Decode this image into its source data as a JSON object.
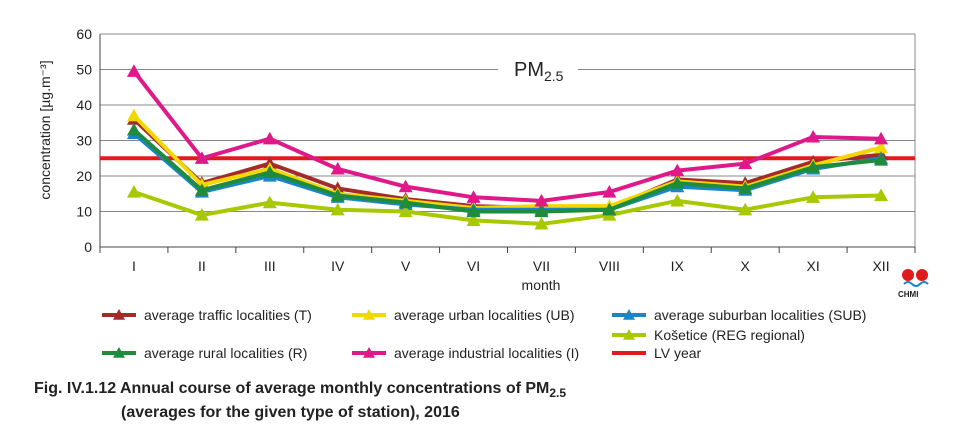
{
  "chart_data": {
    "type": "line",
    "title": "PM",
    "title_sub": "2.5",
    "xlabel": "month",
    "ylabel": "concentration [µg.m⁻³]",
    "ylim": [
      0,
      60
    ],
    "yticks": [
      0,
      10,
      20,
      30,
      40,
      50,
      60
    ],
    "categories": [
      "I",
      "II",
      "III",
      "IV",
      "V",
      "VI",
      "VII",
      "VIII",
      "IX",
      "X",
      "XI",
      "XII"
    ],
    "grid": true,
    "series": [
      {
        "name": "average traffic localities (T)",
        "color": "#a52a2a",
        "values": [
          36,
          18,
          23.5,
          16.5,
          13.5,
          11.5,
          11,
          11,
          19,
          18,
          24,
          26
        ]
      },
      {
        "name": "average urban localities (UB)",
        "color": "#f2d800",
        "values": [
          37,
          17.5,
          22,
          15,
          13,
          11,
          11.5,
          11.5,
          18.5,
          17,
          23,
          28
        ]
      },
      {
        "name": "average suburban localities (SUB)",
        "color": "#1a86c8",
        "values": [
          32,
          15.5,
          20,
          14,
          12,
          10.5,
          10.5,
          10.5,
          17,
          16,
          22,
          25
        ]
      },
      {
        "name": "Košetice (REG  regional)",
        "color": "#a8c800",
        "values": [
          15.5,
          9,
          12.5,
          10.5,
          10,
          7.5,
          6.5,
          9,
          13,
          10.5,
          14,
          14.5
        ]
      },
      {
        "name": "average rural localities (R)",
        "color": "#1f8b3c",
        "values": [
          33,
          16,
          21,
          14.5,
          12.5,
          10,
          10,
          10.5,
          18,
          16.5,
          22.5,
          24.5
        ]
      },
      {
        "name": "average industrial localities (I)",
        "color": "#e0198a",
        "values": [
          49.5,
          25,
          30.5,
          22,
          17,
          14,
          13,
          15.5,
          21.5,
          23.5,
          31,
          30.5
        ]
      }
    ],
    "limit_line": {
      "name": "LV  year",
      "value": 25,
      "color": "#e01b1b"
    }
  },
  "legend": [
    {
      "label": "average traffic localities (T)",
      "color": "#a52a2a",
      "marker": true
    },
    {
      "label": "average urban localities (UB)",
      "color": "#f2d800",
      "marker": true
    },
    {
      "label": "average suburban localities (SUB)",
      "color": "#1a86c8",
      "marker": true
    },
    {
      "label": "Košetice (REG  regional)",
      "color": "#a8c800",
      "marker": true
    },
    {
      "label": "average rural localities (R)",
      "color": "#1f8b3c",
      "marker": true
    },
    {
      "label": "average industrial localities (I)",
      "color": "#e0198a",
      "marker": true
    },
    {
      "label": "LV  year",
      "color": "#e01b1b",
      "marker": false
    }
  ],
  "caption": {
    "line1_prefix": "Fig. IV.1.12  Annual course of average monthly concentrations of PM",
    "line1_sub": "2.5",
    "line2": "(averages for the given type of station), 2016"
  },
  "logo": {
    "text": "CHMI"
  }
}
